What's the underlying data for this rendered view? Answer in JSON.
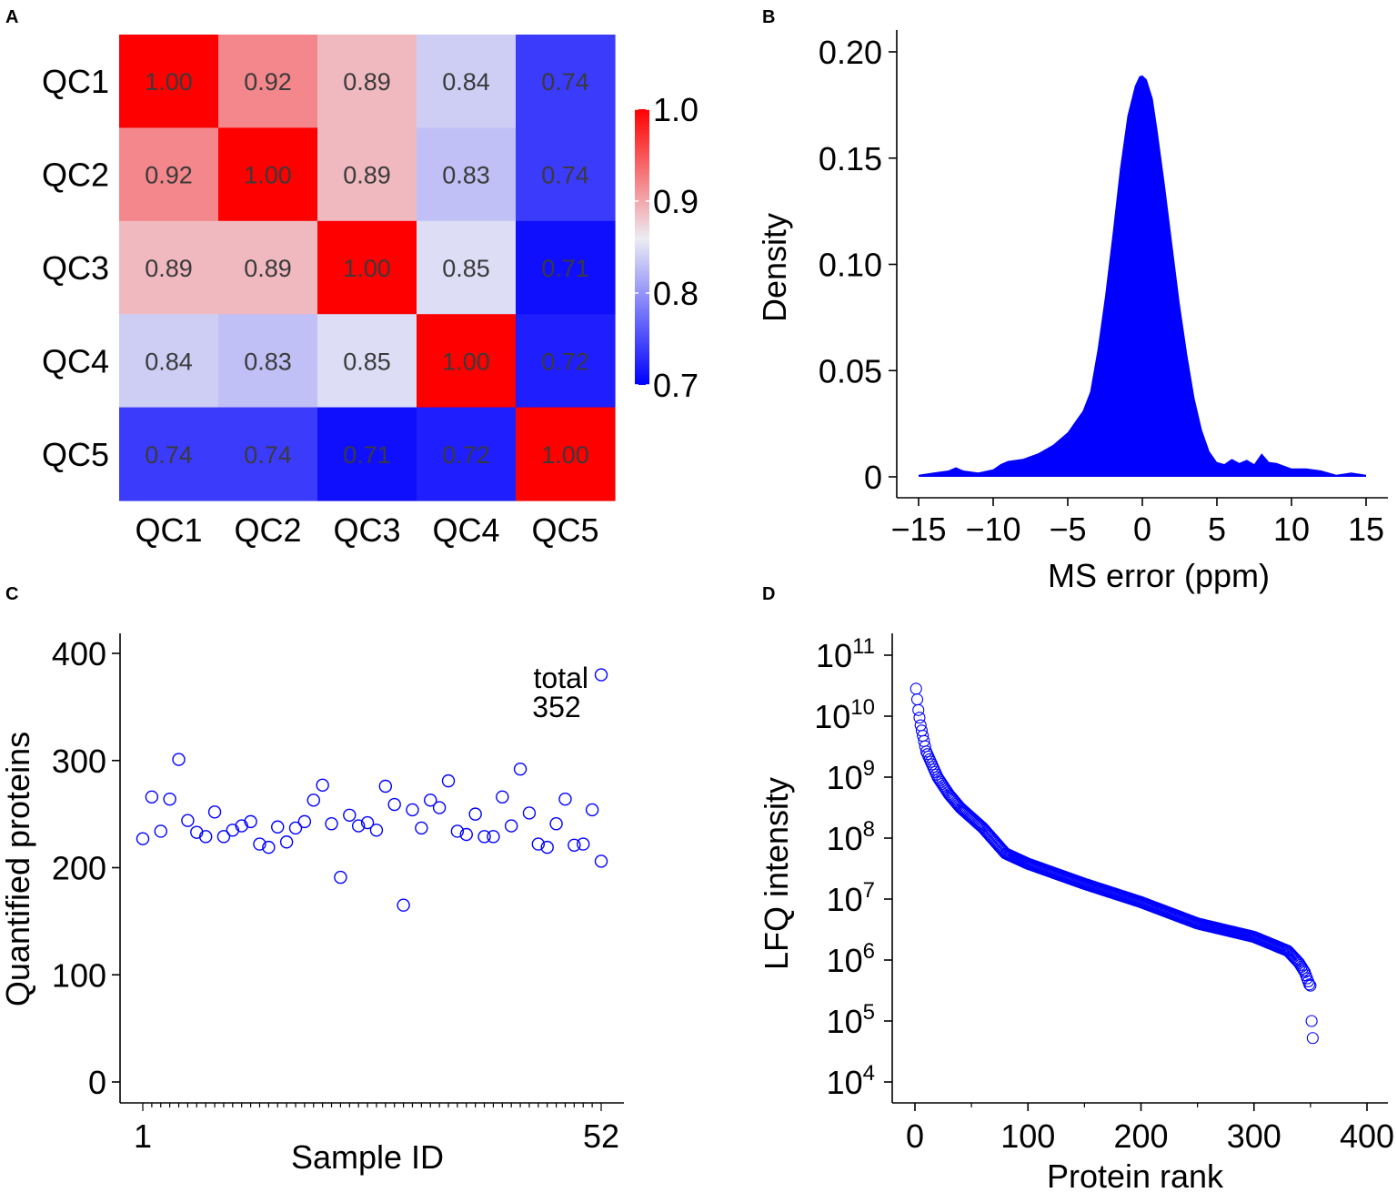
{
  "chart_data": [
    {
      "panel": "A",
      "type": "heatmap",
      "rows": [
        "QC1",
        "QC2",
        "QC3",
        "QC4",
        "QC5"
      ],
      "columns": [
        "QC1",
        "QC2",
        "QC3",
        "QC4",
        "QC5"
      ],
      "values": [
        [
          1.0,
          0.92,
          0.89,
          0.84,
          0.74
        ],
        [
          0.92,
          1.0,
          0.89,
          0.83,
          0.74
        ],
        [
          0.89,
          0.89,
          1.0,
          0.85,
          0.71
        ],
        [
          0.84,
          0.83,
          0.85,
          1.0,
          0.72
        ],
        [
          0.74,
          0.74,
          0.71,
          0.72,
          1.0
        ]
      ],
      "cell_labels": [
        [
          "1.00",
          "0.92",
          "0.89",
          "0.84",
          "0.74"
        ],
        [
          "0.92",
          "1.00",
          "0.89",
          "0.83",
          "0.74"
        ],
        [
          "0.89",
          "0.89",
          "1.00",
          "0.85",
          "0.71"
        ],
        [
          "0.84",
          "0.83",
          "0.85",
          "1.00",
          "0.72"
        ],
        [
          "0.74",
          "0.74",
          "0.71",
          "0.72",
          "1.00"
        ]
      ],
      "colorbar": {
        "range": [
          0.7,
          1.0
        ],
        "ticks": [
          "1.0",
          "0.9",
          "0.8",
          "0.7"
        ],
        "tick_values": [
          1.0,
          0.9,
          0.8,
          0.7
        ],
        "low_color": "#0000ff",
        "mid_color": "#ececf4",
        "high_color": "#ff0000",
        "mid_value": 0.86
      }
    },
    {
      "panel": "B",
      "type": "area",
      "xlabel": "MS error (ppm)",
      "ylabel": "Density",
      "xlim": [
        -15,
        15
      ],
      "ylim": [
        0,
        0.2
      ],
      "xticks": [
        -15,
        -10,
        -5,
        0,
        5,
        10,
        15
      ],
      "xtick_labels": [
        "−15",
        "−10",
        "−5",
        "0",
        "5",
        "10",
        "15"
      ],
      "yticks": [
        0,
        0.05,
        0.1,
        0.15,
        0.2
      ],
      "ytick_labels": [
        "0",
        "0.05",
        "0.10",
        "0.15",
        "0.20"
      ],
      "color": "#0000ff",
      "x": [
        -15,
        -14,
        -13,
        -12.5,
        -12,
        -11,
        -10,
        -9.5,
        -9,
        -8,
        -7,
        -6,
        -5,
        -4.5,
        -4,
        -3.5,
        -3,
        -2.5,
        -2,
        -1.5,
        -1,
        -0.5,
        -0.2,
        0,
        0.3,
        0.7,
        1,
        1.5,
        2,
        2.5,
        3,
        3.5,
        4,
        4.5,
        5,
        5.5,
        6,
        6.5,
        7,
        7.5,
        8,
        8.5,
        9,
        10,
        11,
        12,
        13,
        14,
        15
      ],
      "y": [
        0.001,
        0.002,
        0.003,
        0.0045,
        0.003,
        0.002,
        0.0035,
        0.006,
        0.0075,
        0.0085,
        0.011,
        0.015,
        0.021,
        0.026,
        0.031,
        0.04,
        0.06,
        0.085,
        0.114,
        0.145,
        0.17,
        0.184,
        0.1885,
        0.189,
        0.187,
        0.178,
        0.164,
        0.138,
        0.11,
        0.082,
        0.058,
        0.037,
        0.022,
        0.012,
        0.007,
        0.006,
        0.0085,
        0.0065,
        0.008,
        0.006,
        0.011,
        0.007,
        0.0065,
        0.004,
        0.004,
        0.003,
        0.001,
        0.002,
        0.001
      ]
    },
    {
      "panel": "C",
      "type": "scatter",
      "xlabel": "Sample ID",
      "ylabel": "Quantified proteins",
      "xtick_labels": [
        "1",
        "52"
      ],
      "ylim": [
        0,
        400
      ],
      "yticks": [
        0,
        100,
        200,
        300,
        400
      ],
      "color": "#0000ff",
      "x": [
        1,
        2,
        3,
        4,
        5,
        6,
        7,
        8,
        9,
        10,
        11,
        12,
        13,
        14,
        15,
        16,
        17,
        18,
        19,
        20,
        21,
        22,
        23,
        24,
        25,
        26,
        27,
        28,
        29,
        30,
        31,
        32,
        33,
        34,
        35,
        36,
        37,
        38,
        39,
        40,
        41,
        42,
        43,
        44,
        45,
        46,
        47,
        48,
        49,
        50,
        51,
        52
      ],
      "values": [
        227,
        266,
        234,
        264,
        301,
        244,
        233,
        229,
        252,
        229,
        235,
        239,
        243,
        222,
        219,
        238,
        224,
        237,
        243,
        263,
        277,
        241,
        191,
        249,
        239,
        242,
        235,
        276,
        259,
        165,
        254,
        237,
        263,
        256,
        281,
        234,
        231,
        250,
        229,
        229,
        266,
        239,
        292,
        251,
        222,
        219,
        241,
        264,
        221,
        222,
        254,
        206
      ],
      "total": {
        "x": 52,
        "value": 380,
        "label_line1": "total",
        "label_line2": "352"
      }
    },
    {
      "panel": "D",
      "type": "scatter",
      "xlabel": "Protein rank",
      "ylabel": "LFQ intensity",
      "xlim": [
        0,
        400
      ],
      "xticks": [
        0,
        100,
        200,
        300,
        400
      ],
      "yscale": "log10",
      "ylim_log10": [
        4,
        11
      ],
      "yticks_log10": [
        4,
        5,
        6,
        7,
        8,
        9,
        10,
        11
      ],
      "ytick_base": "10",
      "color": "#0000ff",
      "n_points": 352,
      "curve_rank": [
        1,
        3,
        5,
        10,
        20,
        30,
        40,
        60,
        80,
        100,
        150,
        200,
        250,
        300,
        330,
        340,
        345,
        349,
        350,
        351,
        352
      ],
      "curve_log10": [
        10.45,
        10.1,
        9.85,
        9.42,
        9.0,
        8.72,
        8.5,
        8.17,
        7.75,
        7.58,
        7.25,
        6.95,
        6.6,
        6.38,
        6.15,
        5.95,
        5.8,
        5.6,
        5.58,
        5.0,
        4.72
      ]
    }
  ],
  "panels": {
    "a": {
      "label": "A"
    },
    "b": {
      "label": "B"
    },
    "c": {
      "label": "C"
    },
    "d": {
      "label": "D"
    }
  }
}
